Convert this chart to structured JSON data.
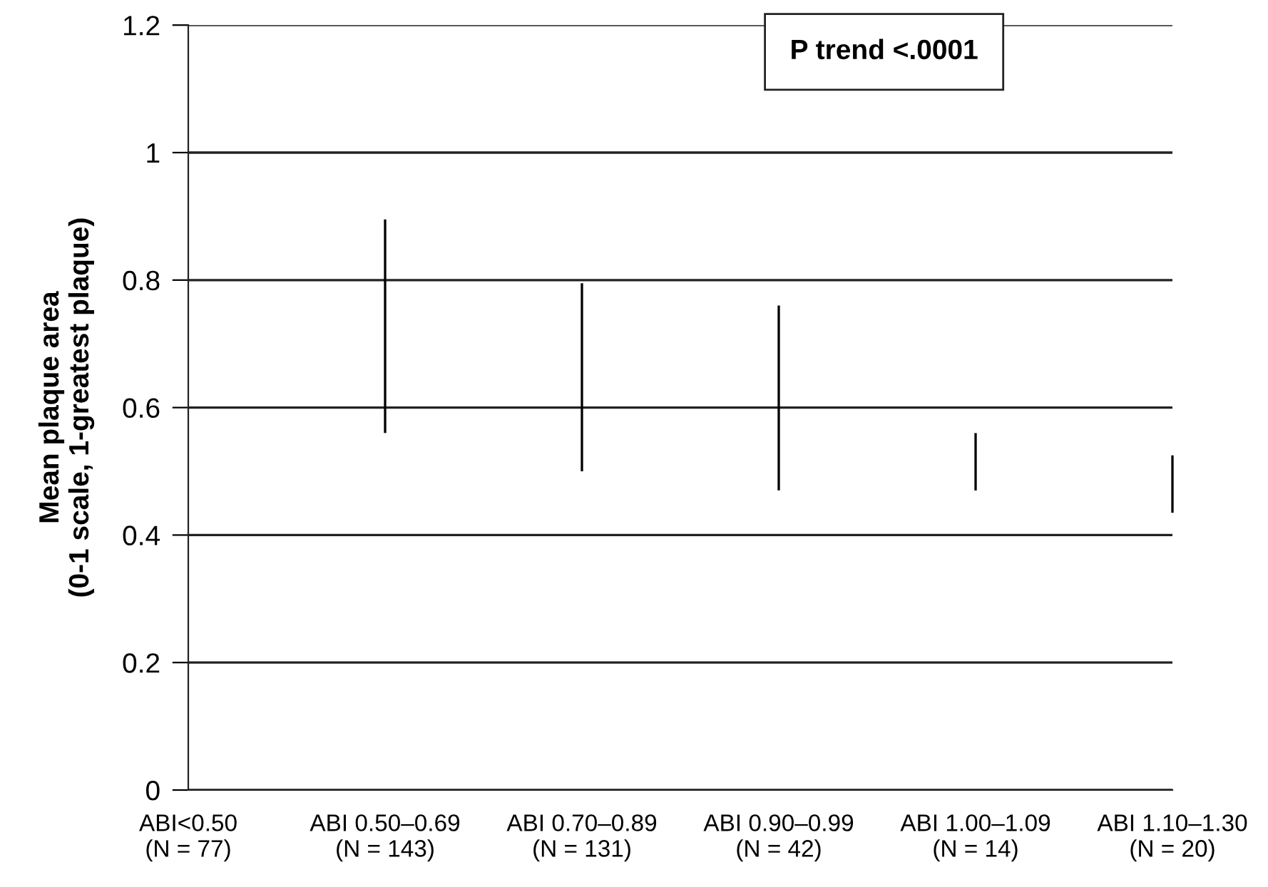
{
  "chart_data": {
    "type": "bar",
    "ylabel": "Mean plaque area\n(0-1 scale, 1-greatest plaque)",
    "categories": [
      "ABI<0.50\n(N = 77)",
      "ABI 0.50–0.69\n(N = 143)",
      "ABI 0.70–0.89\n(N = 131)",
      "ABI 0.90–0.99\n(N = 42)",
      "ABI 1.00–1.09\n(N = 14)",
      "ABI 1.10–1.30\n(N = 20)"
    ],
    "base": [
      null,
      0.56,
      0.5,
      0.47,
      0.47,
      0.435
    ],
    "values": [
      null,
      0.335,
      0.295,
      0.29,
      0.09,
      0.09
    ],
    "color": "#000000",
    "ylim": [
      0,
      1.2
    ],
    "yticks": [
      0,
      0.2,
      0.4,
      0.6,
      0.8,
      1,
      1.2
    ],
    "grid": "y",
    "annotations": [
      "P trend <.0001"
    ]
  }
}
